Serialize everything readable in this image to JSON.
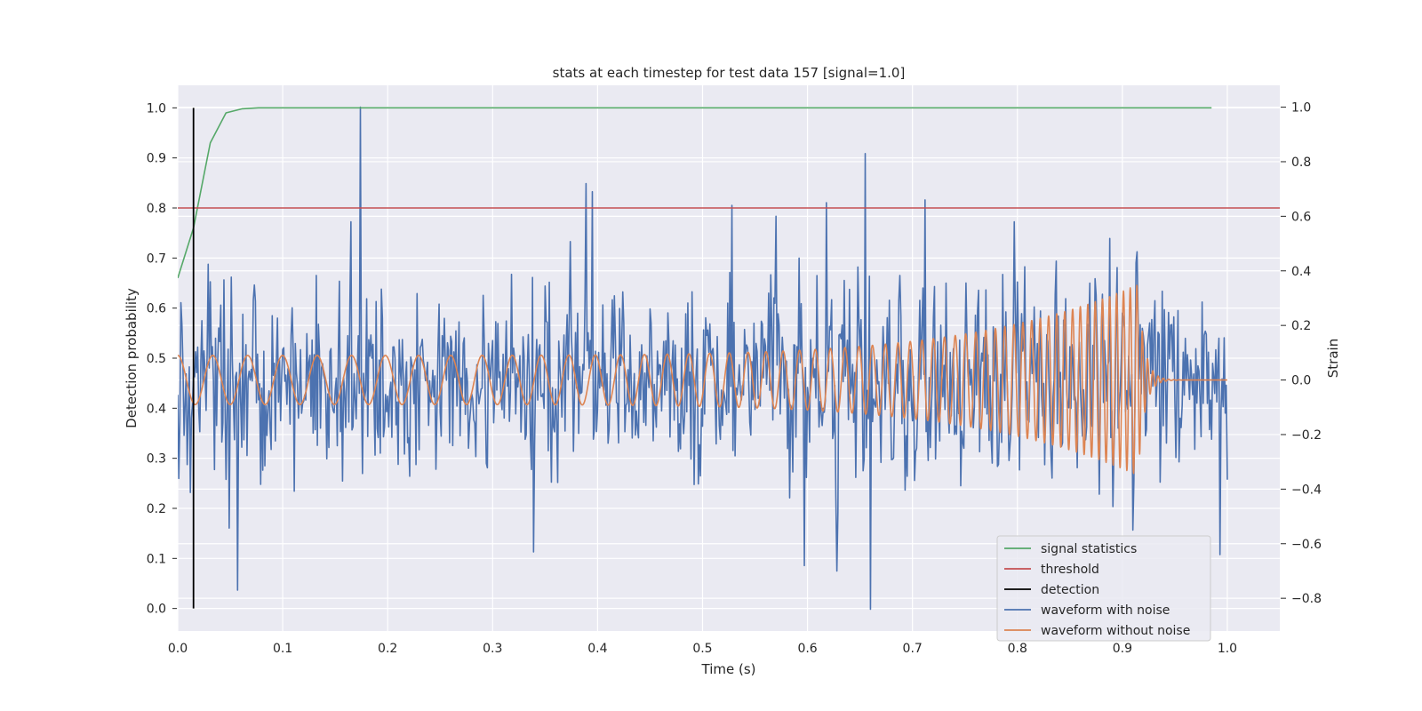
{
  "chart_data": {
    "type": "line",
    "title": "stats at each timestep for test data 157 [signal=1.0]",
    "xlabel": "Time (s)",
    "ylabel": "Detection probability",
    "y2label": "Strain",
    "xlim": [
      0.0,
      1.05
    ],
    "ylim": [
      -0.045,
      1.045
    ],
    "y2lim": [
      -0.92,
      1.08
    ],
    "xticks": [
      "0.0",
      "0.1",
      "0.2",
      "0.3",
      "0.4",
      "0.5",
      "0.6",
      "0.7",
      "0.8",
      "0.9",
      "1.0"
    ],
    "yticks": [
      "0.0",
      "0.1",
      "0.2",
      "0.3",
      "0.4",
      "0.5",
      "0.6",
      "0.7",
      "0.8",
      "0.9",
      "1.0"
    ],
    "y2ticks": [
      "−0.8",
      "−0.6",
      "−0.4",
      "−0.2",
      "0.0",
      "0.2",
      "0.4",
      "0.6",
      "0.8",
      "1.0"
    ],
    "grid": true,
    "legend_position": "lower-right",
    "colors": {
      "signal": "#55a868",
      "threshold": "#c44e52",
      "detection": "#000000",
      "noisy": "#4c72b0",
      "clean": "#dd8452",
      "plot_bg": "#eaeaf2",
      "grid": "#ffffff"
    },
    "series": [
      {
        "name": "signal statistics",
        "axis": "left",
        "x": [
          0.0,
          0.015,
          0.031,
          0.046,
          0.061,
          0.077,
          0.092,
          0.2,
          0.4,
          0.6,
          0.8,
          0.985
        ],
        "y": [
          0.66,
          0.76,
          0.93,
          0.99,
          0.998,
          1.0,
          1.0,
          1.0,
          1.0,
          1.0,
          1.0,
          1.0
        ]
      },
      {
        "name": "threshold",
        "axis": "left",
        "x": [
          0.0,
          1.05
        ],
        "y": [
          0.8,
          0.8
        ]
      },
      {
        "name": "detection",
        "axis": "left",
        "x": [
          0.015,
          0.015
        ],
        "y": [
          0.0,
          1.0
        ]
      },
      {
        "name": "waveform with noise",
        "axis": "right",
        "noise_amplitude": 0.3,
        "peaks": [
          [
            0.174,
            1.0
          ],
          [
            0.057,
            -0.77
          ],
          [
            0.66,
            -0.84
          ],
          [
            0.655,
            0.83
          ],
          [
            0.389,
            0.72
          ],
          [
            0.395,
            0.69
          ],
          [
            0.628,
            -0.7
          ],
          [
            0.597,
            -0.68
          ],
          [
            0.618,
            0.65
          ],
          [
            0.712,
            0.66
          ],
          [
            0.528,
            0.64
          ],
          [
            0.339,
            -0.63
          ],
          [
            0.993,
            -0.64
          ],
          [
            0.91,
            -0.55
          ],
          [
            0.57,
            0.6
          ],
          [
            0.797,
            0.58
          ],
          [
            0.165,
            0.58
          ]
        ]
      },
      {
        "name": "waveform without noise",
        "axis": "right",
        "merger_time": 0.915,
        "amplitude_start": 0.09,
        "amplitude_peak": 0.35,
        "frequency_start": 30,
        "frequency_end": 160
      }
    ]
  }
}
